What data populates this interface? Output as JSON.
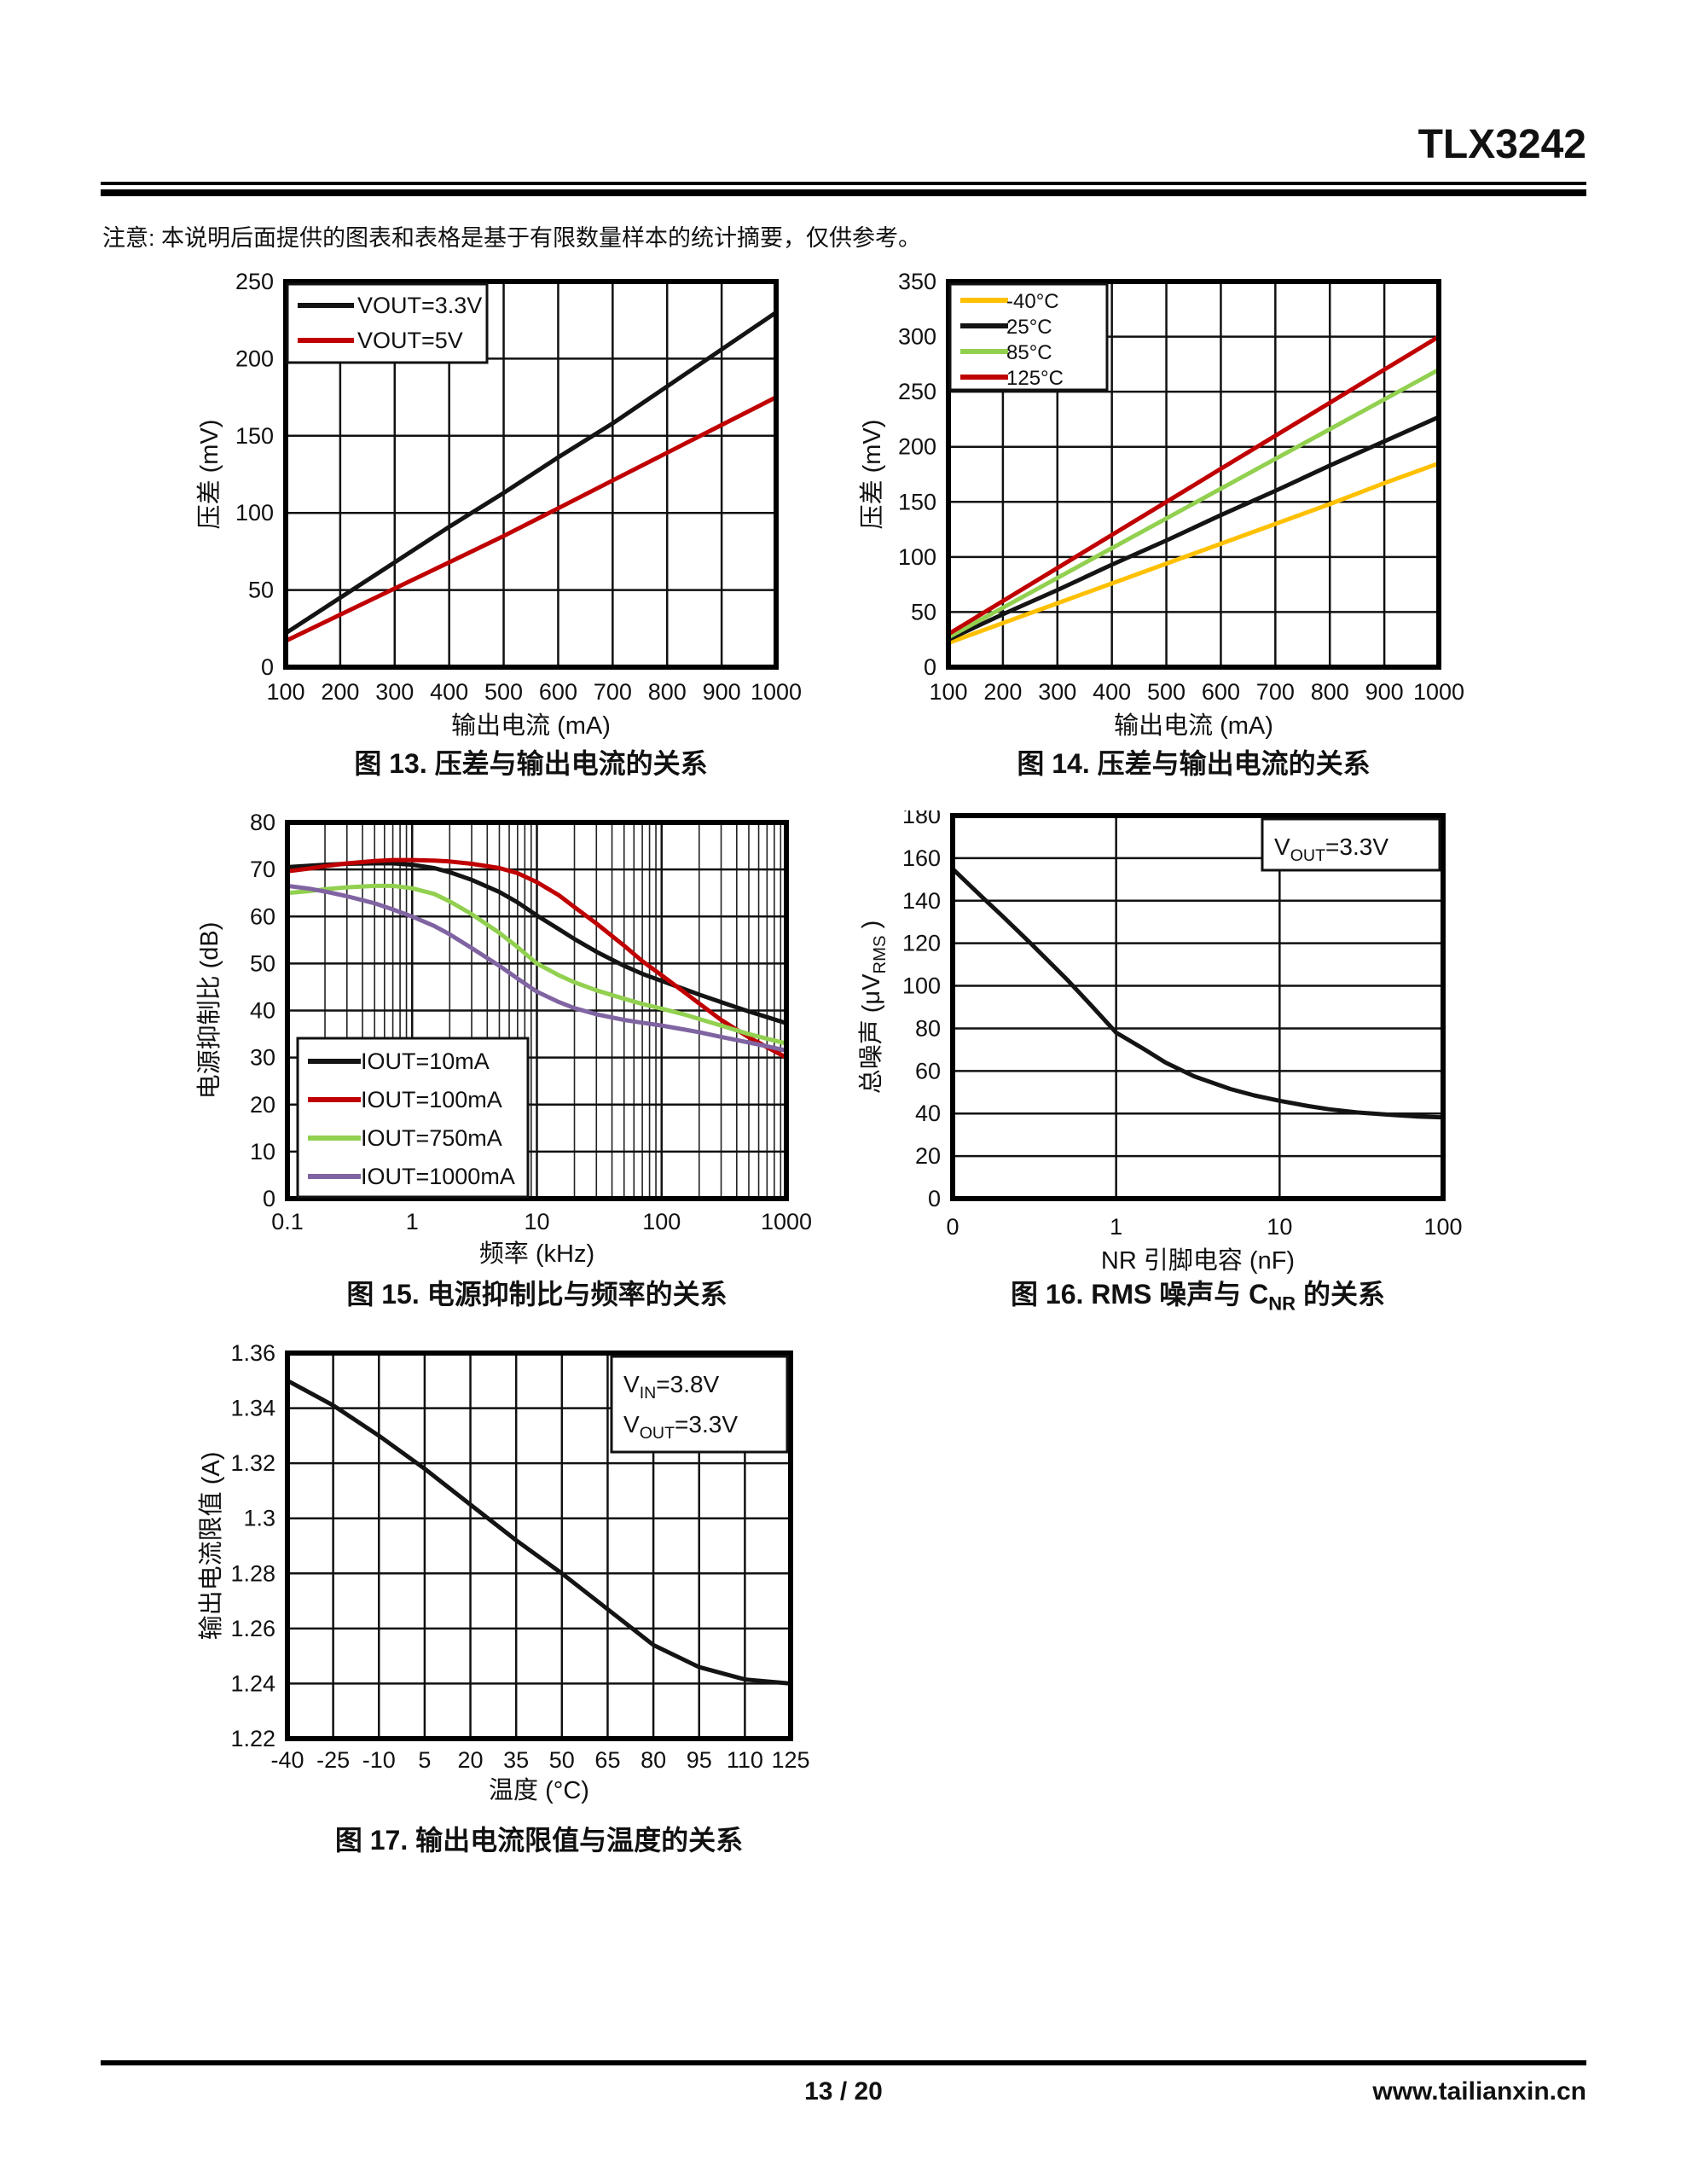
{
  "page": {
    "title": "TLX3242",
    "note": "注意: 本说明后面提供的图表和表格是基于有限数量样本的统计摘要，仅供参考。",
    "footer": {
      "page_number": "13 / 20",
      "website": "www.tailianxin.cn"
    }
  },
  "colors": {
    "black": "#141414",
    "red": "#c00000",
    "yellow": "#ffc000",
    "green": "#92d050",
    "purple": "#8064a2"
  },
  "chart_data": [
    {
      "id": "fig13",
      "type": "line",
      "caption": "图 13. 压差与输出电流的关系",
      "xlabel": "输出电流 (mA)",
      "ylabel": "压差 (mV)",
      "xscale": "linear",
      "xlim": [
        100,
        1000
      ],
      "ylim": [
        0,
        250
      ],
      "x_ticks": [
        100,
        200,
        300,
        400,
        500,
        600,
        700,
        800,
        900,
        1000
      ],
      "x_tick_labels": [
        "100",
        "200",
        "300",
        "400",
        "500",
        "600",
        "700",
        "800",
        "900",
        "1000"
      ],
      "y_ticks": [
        0,
        50,
        100,
        150,
        200,
        250
      ],
      "y_tick_labels": [
        "0",
        "50",
        "100",
        "150",
        "200",
        "250"
      ],
      "grid": "both",
      "legend_position": "top-left",
      "x": [
        100,
        200,
        300,
        400,
        500,
        600,
        700,
        800,
        900,
        1000
      ],
      "series": [
        {
          "name": "VOUT=3.3V",
          "color": "black",
          "values": [
            22,
            45,
            68,
            91,
            113,
            136,
            158,
            182,
            206,
            230
          ]
        },
        {
          "name": "VOUT=5V",
          "color": "red",
          "values": [
            17,
            34,
            51,
            68,
            85,
            103,
            121,
            139,
            157,
            175
          ]
        }
      ]
    },
    {
      "id": "fig14",
      "type": "line",
      "caption": "图 14. 压差与输出电流的关系",
      "xlabel": "输出电流 (mA)",
      "ylabel": "压差 (mV)",
      "xscale": "linear",
      "xlim": [
        100,
        1000
      ],
      "ylim": [
        0,
        350
      ],
      "x_ticks": [
        100,
        200,
        300,
        400,
        500,
        600,
        700,
        800,
        900,
        1000
      ],
      "x_tick_labels": [
        "100",
        "200",
        "300",
        "400",
        "500",
        "600",
        "700",
        "800",
        "900",
        "1000"
      ],
      "y_ticks": [
        0,
        50,
        100,
        150,
        200,
        250,
        300,
        350
      ],
      "y_tick_labels": [
        "0",
        "50",
        "100",
        "150",
        "200",
        "250",
        "300",
        "350"
      ],
      "grid": "both",
      "legend_position": "top-left",
      "x": [
        100,
        200,
        300,
        400,
        500,
        600,
        700,
        800,
        900,
        1000
      ],
      "series": [
        {
          "name": "-40°C",
          "color": "yellow",
          "values": [
            22,
            40,
            58,
            76,
            94,
            112,
            130,
            148,
            167,
            185
          ]
        },
        {
          "name": "25°C",
          "color": "black",
          "values": [
            25,
            48,
            70,
            93,
            115,
            138,
            160,
            183,
            205,
            227
          ]
        },
        {
          "name": "85°C",
          "color": "green",
          "values": [
            27,
            54,
            81,
            108,
            135,
            162,
            189,
            216,
            243,
            270
          ]
        },
        {
          "name": "125°C",
          "color": "red",
          "values": [
            30,
            60,
            90,
            120,
            150,
            180,
            210,
            240,
            270,
            300
          ]
        }
      ]
    },
    {
      "id": "fig15",
      "type": "line",
      "caption": "图 15. 电源抑制比与频率的关系",
      "xlabel": "频率 (kHz)",
      "ylabel": "电源抑制比 (dB)",
      "xscale": "log",
      "xlim": [
        0.1,
        1000
      ],
      "ylim": [
        0,
        80
      ],
      "x_ticks": [
        0.1,
        1,
        10,
        100,
        1000
      ],
      "x_tick_labels": [
        "0.1",
        "1",
        "10",
        "100",
        "1000"
      ],
      "y_ticks": [
        0,
        10,
        20,
        30,
        40,
        50,
        60,
        70,
        80
      ],
      "y_tick_labels": [
        "0",
        "10",
        "20",
        "30",
        "40",
        "50",
        "60",
        "70",
        "80"
      ],
      "grid": "log-minor",
      "legend_position": "bottom-left",
      "x": [
        0.1,
        0.15,
        0.2,
        0.3,
        0.5,
        0.7,
        1,
        1.5,
        2,
        3,
        5,
        7,
        10,
        15,
        20,
        30,
        50,
        70,
        100,
        150,
        200,
        300,
        500,
        700,
        1000
      ],
      "series": [
        {
          "name": "IOUT=10mA",
          "color": "black",
          "values": [
            70.5,
            70.8,
            71.0,
            71.2,
            71.3,
            71.3,
            71.0,
            70.3,
            69.4,
            67.8,
            65.2,
            63.0,
            60.2,
            57.3,
            55.2,
            52.5,
            49.5,
            47.8,
            46.3,
            44.6,
            43.4,
            41.8,
            39.8,
            38.6,
            37.3
          ]
        },
        {
          "name": "IOUT=100mA",
          "color": "red",
          "values": [
            69.6,
            70.2,
            70.7,
            71.3,
            71.8,
            72.0,
            72.0,
            71.9,
            71.7,
            71.2,
            70.3,
            69.2,
            67.3,
            64.5,
            62.0,
            58.5,
            53.8,
            50.5,
            47.5,
            44.0,
            41.5,
            38.0,
            34.3,
            32.2,
            30.0
          ]
        },
        {
          "name": "IOUT=750mA",
          "color": "green",
          "values": [
            65.0,
            65.4,
            65.8,
            66.2,
            66.5,
            66.5,
            66.0,
            64.8,
            63.2,
            60.5,
            56.5,
            53.5,
            50.0,
            47.5,
            46.0,
            44.3,
            42.5,
            41.4,
            40.4,
            39.2,
            38.2,
            36.8,
            35.0,
            34.0,
            33.0
          ]
        },
        {
          "name": "IOUT=1000mA",
          "color": "purple",
          "values": [
            66.5,
            65.9,
            65.3,
            64.3,
            62.8,
            61.5,
            60.0,
            58.0,
            56.2,
            53.3,
            49.5,
            46.8,
            44.0,
            41.8,
            40.5,
            39.2,
            38.0,
            37.4,
            36.8,
            36.0,
            35.4,
            34.4,
            33.2,
            32.4,
            31.5
          ]
        }
      ]
    },
    {
      "id": "fig16",
      "type": "line",
      "caption": "图 16. RMS 噪声与 C~NR~ 的关系",
      "xlabel": "NR 引脚电容 (nF)",
      "ylabel": "总噪声 (μV~RMS~ )",
      "xscale": "log-zero",
      "xlim": [
        0,
        100
      ],
      "ylim": [
        0,
        180
      ],
      "x_ticks": [
        0,
        1,
        10,
        100
      ],
      "x_tick_labels": [
        "0",
        "1",
        "10",
        "100"
      ],
      "grid_x": [
        1,
        10
      ],
      "y_ticks": [
        0,
        20,
        40,
        60,
        80,
        100,
        120,
        140,
        160,
        180
      ],
      "y_tick_labels": [
        "0",
        "20",
        "40",
        "60",
        "80",
        "100",
        "120",
        "140",
        "160",
        "180"
      ],
      "grid": "both",
      "annotation": [
        "V~OUT~=3.3V"
      ],
      "x": [
        0,
        0.15,
        0.2,
        0.3,
        0.5,
        0.7,
        1,
        1.5,
        2,
        3,
        5,
        7,
        10,
        15,
        20,
        30,
        50,
        70,
        100
      ],
      "series": [
        {
          "name": "noise",
          "color": "black",
          "values": [
            155,
            142,
            133,
            120,
            103,
            91,
            78,
            70,
            64,
            57.5,
            51.5,
            48.5,
            46,
            43.5,
            42,
            40.5,
            39.3,
            38.6,
            38.2
          ]
        }
      ]
    },
    {
      "id": "fig17",
      "type": "line",
      "caption": "图 17. 输出电流限值与温度的关系",
      "xlabel": "温度 (°C)",
      "ylabel": "输出电流限值 (A)",
      "xscale": "linear",
      "xlim": [
        -40,
        125
      ],
      "ylim": [
        1.22,
        1.36
      ],
      "x_ticks": [
        -40,
        -25,
        -10,
        5,
        20,
        35,
        50,
        65,
        80,
        95,
        110,
        125
      ],
      "x_tick_labels": [
        "-40",
        "-25",
        "-10",
        "5",
        "20",
        "35",
        "50",
        "65",
        "80",
        "95",
        "110",
        "125"
      ],
      "y_ticks": [
        1.22,
        1.24,
        1.26,
        1.28,
        1.3,
        1.32,
        1.34,
        1.36
      ],
      "y_tick_labels": [
        "1.22",
        "1.24",
        "1.26",
        "1.28",
        "1.3",
        "1.32",
        "1.34",
        "1.36"
      ],
      "grid": "both",
      "annotation": [
        "V~IN~=3.8V",
        "V~OUT~=3.3V"
      ],
      "x": [
        -40,
        -25,
        -10,
        5,
        20,
        35,
        50,
        65,
        80,
        95,
        110,
        125
      ],
      "series": [
        {
          "name": "current-limit",
          "color": "black",
          "values": [
            1.35,
            1.341,
            1.33,
            1.318,
            1.305,
            1.292,
            1.28,
            1.267,
            1.254,
            1.246,
            1.2415,
            1.24
          ]
        }
      ]
    }
  ]
}
